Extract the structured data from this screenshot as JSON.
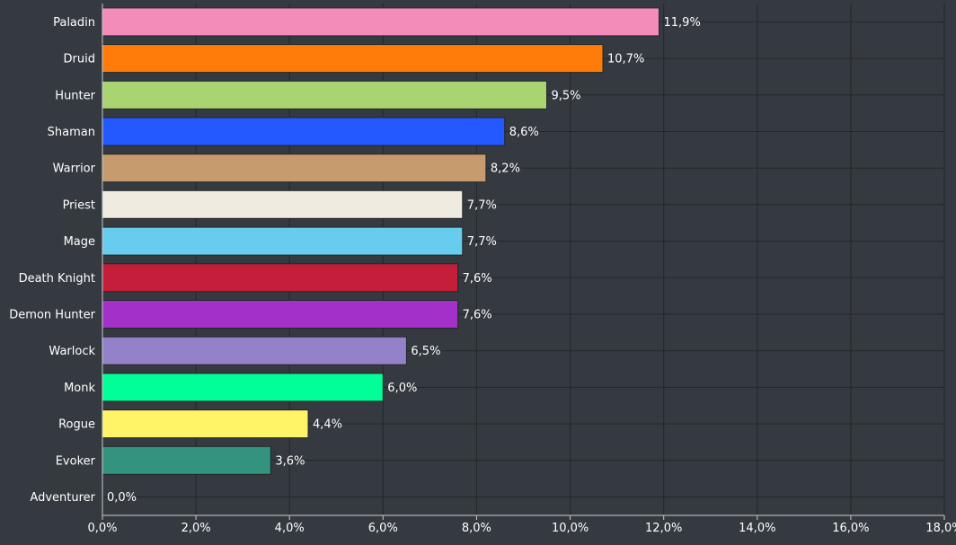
{
  "chart_data": {
    "type": "bar",
    "orientation": "horizontal",
    "title": "",
    "xlabel": "",
    "ylabel": "",
    "xlim": [
      0,
      18
    ],
    "x_ticks": [
      0,
      2,
      4,
      6,
      8,
      10,
      12,
      14,
      16,
      18
    ],
    "x_tick_labels": [
      "0,0%",
      "2,0%",
      "4,0%",
      "6,0%",
      "8,0%",
      "10,0%",
      "12,0%",
      "14,0%",
      "16,0%",
      "18,0%"
    ],
    "grid": true,
    "legend": "none",
    "categories": [
      "Paladin",
      "Druid",
      "Hunter",
      "Shaman",
      "Warrior",
      "Priest",
      "Mage",
      "Death Knight",
      "Demon Hunter",
      "Warlock",
      "Monk",
      "Rogue",
      "Evoker",
      "Adventurer"
    ],
    "values": [
      11.9,
      10.7,
      9.5,
      8.6,
      8.2,
      7.7,
      7.7,
      7.6,
      7.6,
      6.5,
      6.0,
      4.4,
      3.6,
      0.0
    ],
    "value_labels": [
      "11,9%",
      "10,7%",
      "9,5%",
      "8,6%",
      "8,2%",
      "7,7%",
      "7,7%",
      "7,6%",
      "7,6%",
      "6,5%",
      "6,0%",
      "4,4%",
      "3,6%",
      "0,0%"
    ],
    "colors": [
      "#f48cba",
      "#ff7c0a",
      "#aad372",
      "#2459ff",
      "#c69b6d",
      "#f0ebe0",
      "#68ccef",
      "#c41e3b",
      "#a330c9",
      "#9382c9",
      "#00ff98",
      "#fff468",
      "#33937f",
      "#8a8a8a"
    ]
  }
}
